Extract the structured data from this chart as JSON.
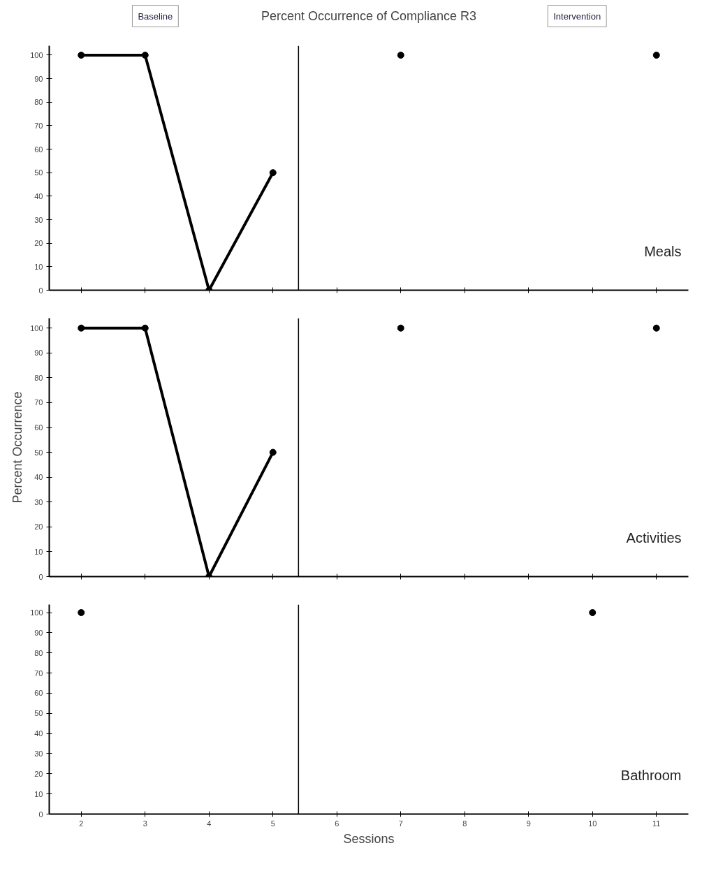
{
  "chart_data": [
    {
      "type": "line",
      "title": "Percent Occurrence of Compliance R3",
      "annotations": [
        "Baseline",
        "Intervention",
        "Meals"
      ],
      "xlim": [
        1.5,
        11.5
      ],
      "xticks": [
        2,
        3,
        4,
        5,
        6,
        7,
        8,
        9,
        10,
        11
      ],
      "ylim": [
        0,
        104
      ],
      "yticks": [
        0,
        10,
        20,
        30,
        40,
        50,
        60,
        70,
        80,
        90,
        100
      ],
      "tick_labels": "y",
      "grid": false,
      "marker": "circle",
      "line_style": "solid",
      "ref_lines": [
        {
          "axis": "x",
          "value": 5.4,
          "label": null,
          "color": "#000000"
        }
      ],
      "series": [
        {
          "color": "#000000",
          "x": [
            2,
            3,
            4,
            5
          ],
          "values": [
            100,
            100,
            0,
            50
          ]
        },
        {
          "type": "scatter",
          "color": "#000000",
          "x": [
            7,
            11
          ],
          "values": [
            100,
            100
          ]
        }
      ]
    },
    {
      "type": "line",
      "ylabel": "Percent Occurrence",
      "annotations": [
        "Activities"
      ],
      "xlim": [
        1.5,
        11.5
      ],
      "xticks": [
        2,
        3,
        4,
        5,
        6,
        7,
        8,
        9,
        10,
        11
      ],
      "ylim": [
        0,
        104
      ],
      "yticks": [
        0,
        10,
        20,
        30,
        40,
        50,
        60,
        70,
        80,
        90,
        100
      ],
      "tick_labels": "y",
      "grid": false,
      "marker": "circle",
      "line_style": "solid",
      "ref_lines": [
        {
          "axis": "x",
          "value": 5.4,
          "label": null,
          "color": "#000000"
        }
      ],
      "series": [
        {
          "color": "#000000",
          "x": [
            2,
            3,
            4,
            5
          ],
          "values": [
            100,
            100,
            0,
            50
          ]
        },
        {
          "type": "scatter",
          "color": "#000000",
          "x": [
            7,
            11
          ],
          "values": [
            100,
            100
          ]
        }
      ]
    },
    {
      "type": "scatter",
      "xlabel": "Sessions",
      "annotations": [
        "Bathroom"
      ],
      "xlim": [
        1.5,
        11.5
      ],
      "xticks": [
        2,
        3,
        4,
        5,
        6,
        7,
        8,
        9,
        10,
        11
      ],
      "ylim": [
        0,
        104
      ],
      "yticks": [
        0,
        10,
        20,
        30,
        40,
        50,
        60,
        70,
        80,
        90,
        100
      ],
      "grid": false,
      "marker": "circle",
      "line_style": "solid",
      "ref_lines": [
        {
          "axis": "x",
          "value": 5.4,
          "label": null,
          "color": "#000000"
        }
      ],
      "series": [
        {
          "color": "#000000",
          "x": [
            2
          ],
          "values": [
            100
          ]
        },
        {
          "color": "#000000",
          "x": [
            10
          ],
          "values": [
            100
          ]
        }
      ]
    }
  ]
}
